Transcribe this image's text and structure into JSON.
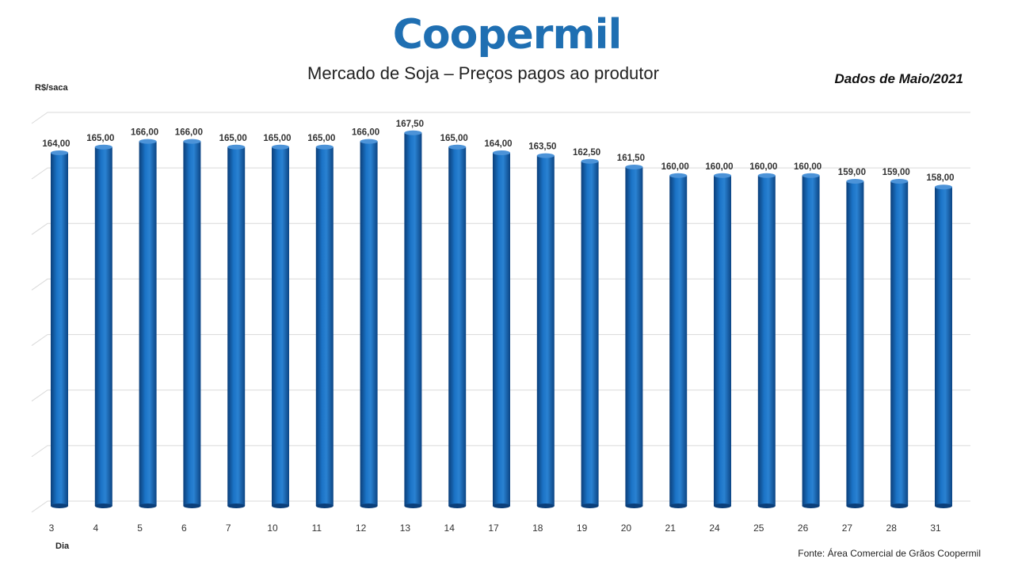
{
  "logo_text": "Coopermil",
  "colors": {
    "bar": "#1565b5",
    "bar_dark": "#0b3f7a",
    "bar_light": "#4c93d8",
    "logo": "#1f6fb2",
    "grid": "#d9d9d9"
  },
  "chart_data": {
    "type": "bar",
    "title": "Mercado de Soja – Preços pagos ao produtor",
    "subtitle": "Dados de Maio/2021",
    "ylabel": "R$/saca",
    "xlabel": "Dia",
    "source": "Fonte:  Área Comercial de Grãos Coopermil",
    "grid": true,
    "categories": [
      "3",
      "4",
      "5",
      "6",
      "7",
      "10",
      "11",
      "12",
      "13",
      "14",
      "17",
      "18",
      "19",
      "20",
      "21",
      "24",
      "25",
      "26",
      "27",
      "28",
      "31"
    ],
    "values": [
      164.0,
      165.0,
      166.0,
      166.0,
      165.0,
      165.0,
      165.0,
      166.0,
      167.5,
      165.0,
      164.0,
      163.5,
      162.5,
      161.5,
      160.0,
      160.0,
      160.0,
      160.0,
      159.0,
      159.0,
      158.0
    ],
    "value_labels": [
      "164,00",
      "165,00",
      "166,00",
      "166,00",
      "165,00",
      "165,00",
      "165,00",
      "166,00",
      "167,50",
      "165,00",
      "164,00",
      "163,50",
      "162,50",
      "161,50",
      "160,00",
      "160,00",
      "160,00",
      "160,00",
      "159,00",
      "159,00",
      "158,00"
    ]
  }
}
